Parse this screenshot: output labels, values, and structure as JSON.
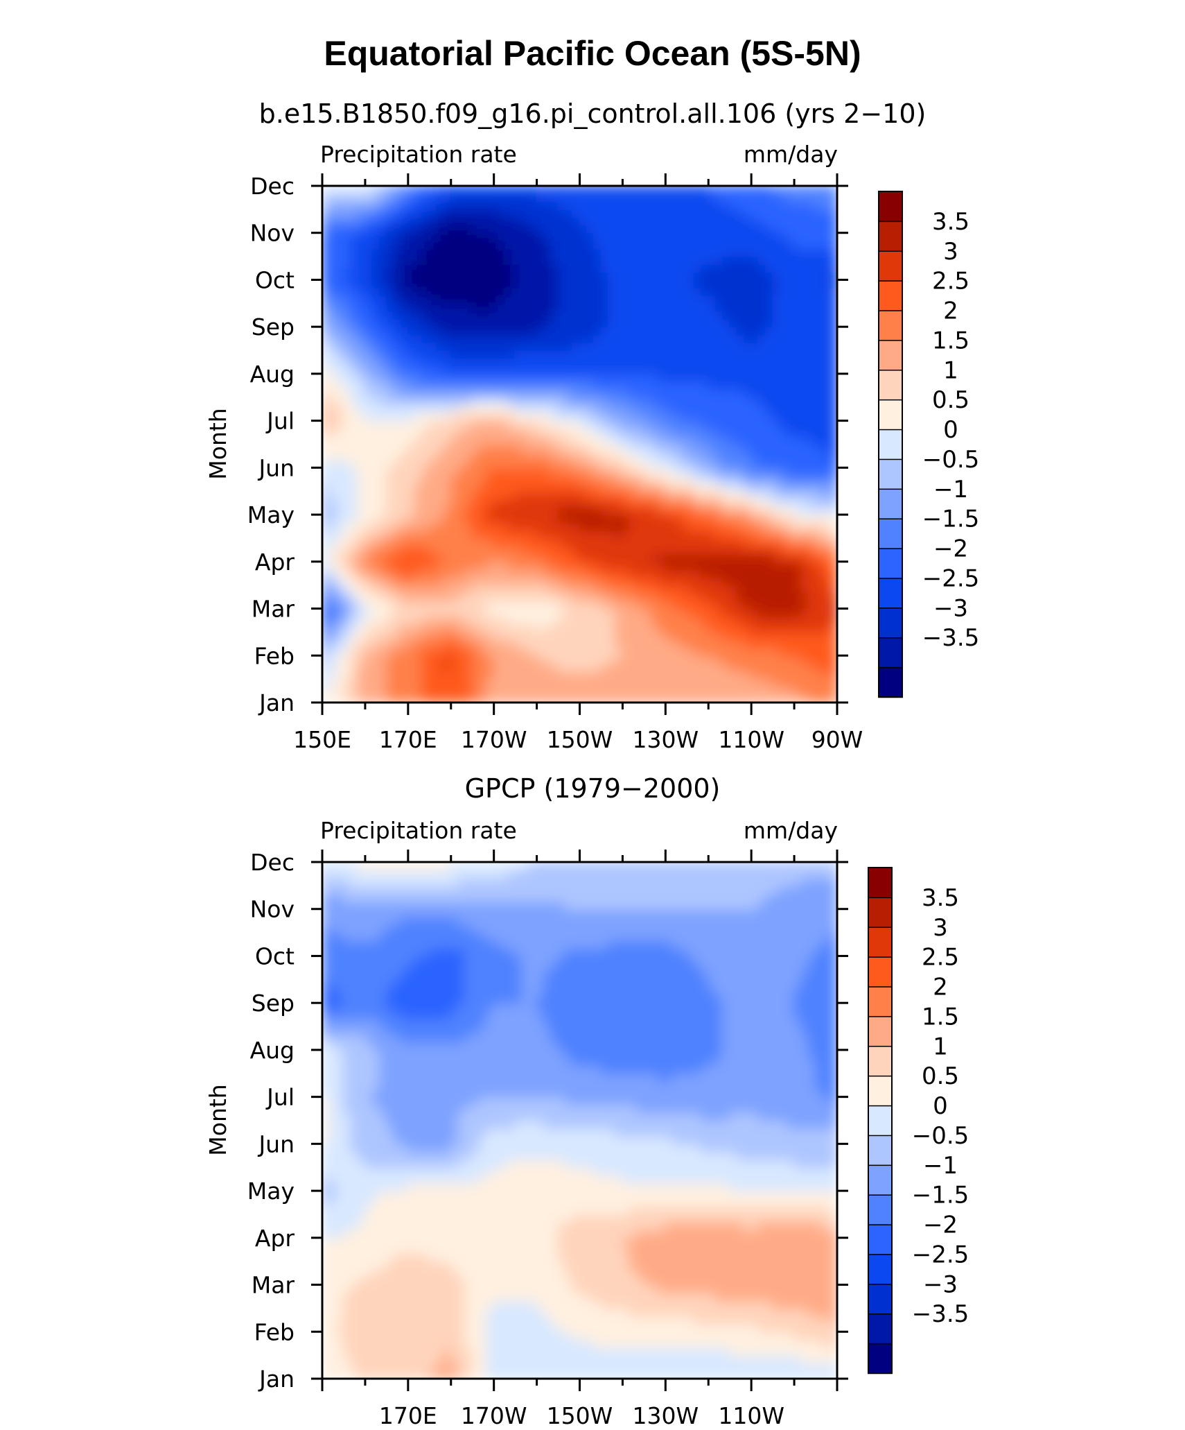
{
  "figure": {
    "title": "Equatorial Pacific Ocean (5S-5N)",
    "ylabel": "Month",
    "left_label": "Precipitation rate",
    "right_label": "mm/day"
  },
  "colorbar": {
    "colors": [
      "#000080",
      "#0018a8",
      "#0030d0",
      "#0c48f0",
      "#2c64ff",
      "#5082ff",
      "#7ea2ff",
      "#aec6ff",
      "#d8e8ff",
      "#fff0e0",
      "#ffd4bc",
      "#ffaa86",
      "#ff8048",
      "#ff5a1e",
      "#e03808",
      "#b81e00",
      "#880000"
    ],
    "labels": [
      "3.5",
      "3",
      "2.5",
      "2",
      "1.5",
      "1",
      "0.5",
      "0",
      "−0.5",
      "−1",
      "−1.5",
      "−2",
      "−2.5",
      "−3",
      "−3.5"
    ]
  },
  "months": [
    "Jan",
    "Feb",
    "Mar",
    "Apr",
    "May",
    "Jun",
    "Jul",
    "Aug",
    "Sep",
    "Oct",
    "Nov",
    "Dec"
  ],
  "chart_data": [
    {
      "type": "heatmap",
      "title": "b.e15.B1850.f09_g16.pi_control.all.106 (yrs 2−10)",
      "xlabel": "",
      "ylabel": "Month",
      "x_ticks": [
        "150E",
        "170E",
        "170W",
        "150W",
        "130W",
        "110W",
        "90W"
      ],
      "x": [
        "150E",
        "160E",
        "170E",
        "180",
        "170W",
        "160W",
        "150W",
        "140W",
        "130W",
        "120W",
        "110W",
        "100W",
        "90W"
      ],
      "y": [
        "Jan",
        "Feb",
        "Mar",
        "Apr",
        "May",
        "Jun",
        "Jul",
        "Aug",
        "Sep",
        "Oct",
        "Nov",
        "Dec"
      ],
      "units": "mm/day",
      "levels": [
        -3.5,
        -3,
        -2.5,
        -2,
        -1.5,
        -1,
        -0.5,
        0,
        0.5,
        1,
        1.5,
        2,
        2.5,
        3,
        3.5
      ],
      "z": [
        [
          0.5,
          1.8,
          2.2,
          3.0,
          1.8,
          1.6,
          1.7,
          1.6,
          1.7,
          1.7,
          1.7,
          1.8,
          2.3
        ],
        [
          -0.3,
          1.6,
          2.3,
          3.1,
          2.0,
          1.5,
          1.4,
          1.5,
          1.8,
          2.0,
          2.2,
          2.5,
          2.8
        ],
        [
          -2.2,
          0.3,
          1.1,
          1.3,
          0.8,
          0.6,
          1.1,
          1.6,
          2.3,
          2.8,
          3.6,
          3.7,
          3.1
        ],
        [
          0.4,
          2.2,
          3.1,
          2.4,
          2.0,
          2.3,
          2.9,
          3.4,
          3.6,
          3.8,
          3.8,
          3.6,
          2.6
        ],
        [
          -0.4,
          0.6,
          1.4,
          2.1,
          3.2,
          3.5,
          3.7,
          3.6,
          3.1,
          2.5,
          1.8,
          0.7,
          0.4
        ],
        [
          0.1,
          0.6,
          1.3,
          1.9,
          2.5,
          2.6,
          2.1,
          1.3,
          0.4,
          -0.6,
          -1.4,
          -1.8,
          -2.0
        ],
        [
          1.7,
          0.5,
          0.6,
          1.3,
          1.6,
          1.0,
          0.3,
          -0.6,
          -1.3,
          -1.7,
          -1.9,
          -2.1,
          -2.1
        ],
        [
          0.9,
          -0.3,
          -1.6,
          -2.0,
          -2.0,
          -2.0,
          -2.0,
          -2.0,
          -2.1,
          -2.1,
          -2.1,
          -2.1,
          -2.1
        ],
        [
          -0.4,
          -1.6,
          -2.6,
          -3.2,
          -3.3,
          -3.1,
          -2.8,
          -2.3,
          -2.2,
          -2.3,
          -2.7,
          -2.3,
          -2.2
        ],
        [
          -1.6,
          -2.3,
          -3.6,
          -3.9,
          -3.8,
          -3.3,
          -2.7,
          -2.4,
          -2.3,
          -2.6,
          -2.8,
          -2.3,
          -2.6
        ],
        [
          -1.6,
          -2.2,
          -3.1,
          -3.7,
          -3.5,
          -3.1,
          -2.6,
          -2.3,
          -2.2,
          -2.3,
          -2.2,
          -1.9,
          -1.8
        ],
        [
          0.3,
          0.6,
          -1.1,
          -2.2,
          -2.4,
          -2.3,
          -2.2,
          -2.2,
          -2.2,
          -2.0,
          -1.6,
          -1.3,
          -1.2
        ]
      ]
    },
    {
      "type": "heatmap",
      "title": "GPCP (1979−2000)",
      "xlabel": "",
      "ylabel": "Month",
      "x_ticks": [
        "170E",
        "170W",
        "150W",
        "130W",
        "110W"
      ],
      "x": [
        "150E",
        "160E",
        "170E",
        "180",
        "170W",
        "160W",
        "150W",
        "140W",
        "130W",
        "120W",
        "110W",
        "100W",
        "90W"
      ],
      "y": [
        "Jan",
        "Feb",
        "Mar",
        "Apr",
        "May",
        "Jun",
        "Jul",
        "Aug",
        "Sep",
        "Oct",
        "Nov",
        "Dec"
      ],
      "units": "mm/day",
      "levels": [
        -3.5,
        -3,
        -2.5,
        -2,
        -1.5,
        -1,
        -0.5,
        0,
        0.5,
        1,
        1.5,
        2,
        2.5,
        3,
        3.5
      ],
      "z": [
        [
          0.6,
          1.1,
          1.3,
          1.7,
          0.4,
          0.1,
          0.1,
          0.1,
          0.1,
          0.0,
          0.0,
          0.0,
          0.1
        ],
        [
          0.8,
          1.3,
          1.2,
          1.4,
          0.2,
          0.3,
          0.6,
          0.7,
          0.7,
          0.8,
          0.9,
          1.1,
          1.4
        ],
        [
          0.8,
          1.1,
          1.3,
          1.2,
          0.6,
          0.6,
          1.1,
          1.4,
          1.6,
          1.7,
          1.8,
          1.9,
          1.9
        ],
        [
          0.5,
          0.6,
          0.9,
          0.7,
          0.7,
          0.8,
          1.3,
          1.5,
          1.8,
          2.0,
          1.8,
          2.0,
          1.8
        ],
        [
          -0.3,
          0.4,
          0.6,
          0.6,
          0.7,
          0.8,
          0.7,
          0.6,
          0.6,
          0.6,
          0.5,
          0.4,
          0.4
        ],
        [
          0.6,
          -0.3,
          -0.6,
          -0.6,
          0.3,
          0.4,
          0.3,
          0.2,
          0.1,
          -0.1,
          -0.2,
          -0.3,
          -0.3
        ],
        [
          0.6,
          -0.5,
          -0.6,
          -0.6,
          -0.5,
          -0.5,
          -0.6,
          -0.7,
          -0.8,
          -0.8,
          -0.7,
          -0.8,
          -1.1
        ],
        [
          0.4,
          -0.3,
          -0.8,
          -0.9,
          -0.8,
          -0.8,
          -1.2,
          -1.3,
          -1.3,
          -1.1,
          -0.8,
          -0.9,
          -1.2
        ],
        [
          -1.9,
          -1.2,
          -1.9,
          -1.7,
          -1.0,
          -1.0,
          -1.3,
          -1.4,
          -1.4,
          -1.1,
          -0.8,
          -1.0,
          -1.3
        ],
        [
          -1.2,
          -1.1,
          -1.4,
          -1.7,
          -1.2,
          -0.9,
          -1.1,
          -1.2,
          -1.2,
          -0.9,
          -0.7,
          -0.9,
          -1.2
        ],
        [
          -0.9,
          -0.7,
          -0.9,
          -0.8,
          -0.6,
          -0.6,
          -0.5,
          -0.5,
          -0.5,
          -0.5,
          -0.5,
          -0.6,
          -0.8
        ],
        [
          0.2,
          0.7,
          0.9,
          0.6,
          0.3,
          0.0,
          -0.2,
          -0.3,
          -0.4,
          -0.4,
          -0.4,
          -0.4,
          -0.4
        ]
      ]
    }
  ]
}
